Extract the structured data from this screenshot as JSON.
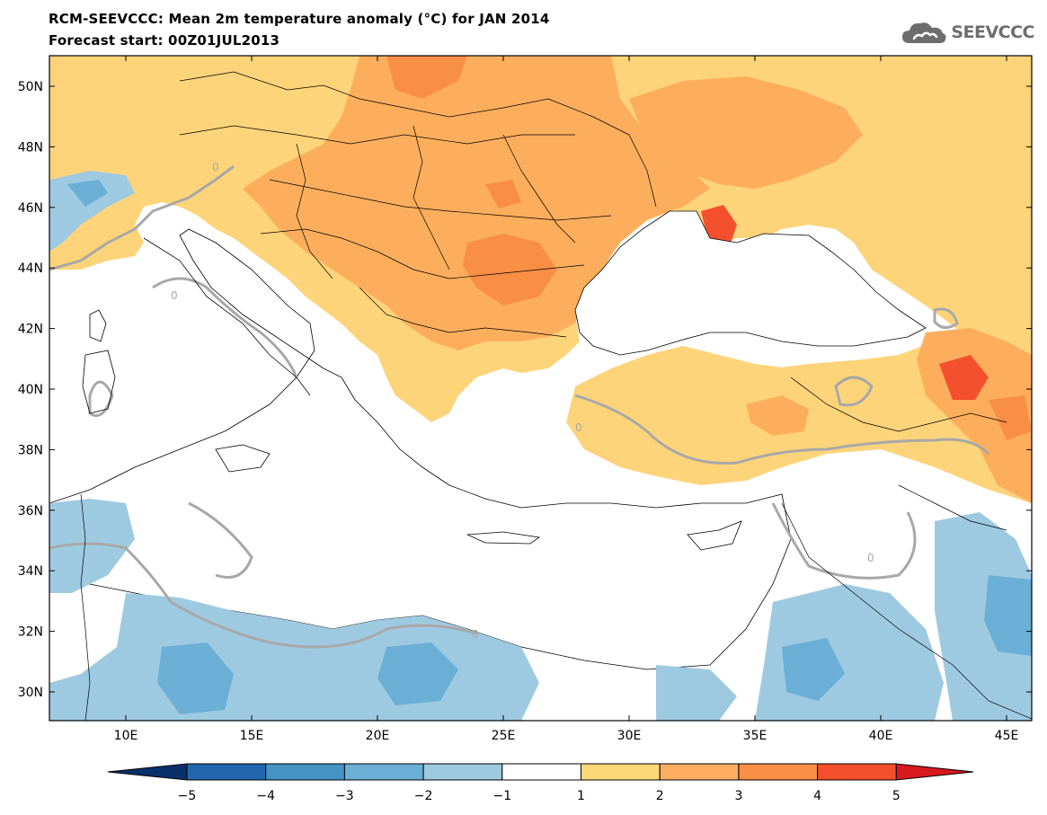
{
  "header": {
    "title": "RCM-SEEVCCC: Mean 2m temperature anomaly (°C) for JAN 2014",
    "subtitle": "Forecast start: 00Z01JUL2013"
  },
  "logo": {
    "text": "SEEVCCC",
    "icon": "cloud-icon"
  },
  "map": {
    "lat_labels": [
      "50N",
      "48N",
      "46N",
      "44N",
      "42N",
      "40N",
      "38N",
      "36N",
      "34N",
      "32N",
      "30N"
    ],
    "lon_labels": [
      "10E",
      "15E",
      "20E",
      "25E",
      "30E",
      "35E",
      "40E",
      "45E"
    ],
    "contour_label": "0"
  },
  "colorbar": {
    "ticks": [
      "-5",
      "-4",
      "-3",
      "-2",
      "-1",
      "1",
      "2",
      "3",
      "4",
      "5"
    ],
    "colors": [
      "#08306b",
      "#2166ac",
      "#4393c3",
      "#6baed6",
      "#9ecae1",
      "#ffffff",
      "#fdd878",
      "#fdae61",
      "#f98e45",
      "#f4502e",
      "#d7191c"
    ]
  },
  "palette": {
    "sea": "#ffffff",
    "light_orange": "#fed47a",
    "orange": "#fdae5c",
    "dark_orange": "#f98e45",
    "red": "#f4502e",
    "light_blue": "#9ecae1",
    "blue": "#6baed6",
    "contour_gray": "#a8a8a8"
  }
}
